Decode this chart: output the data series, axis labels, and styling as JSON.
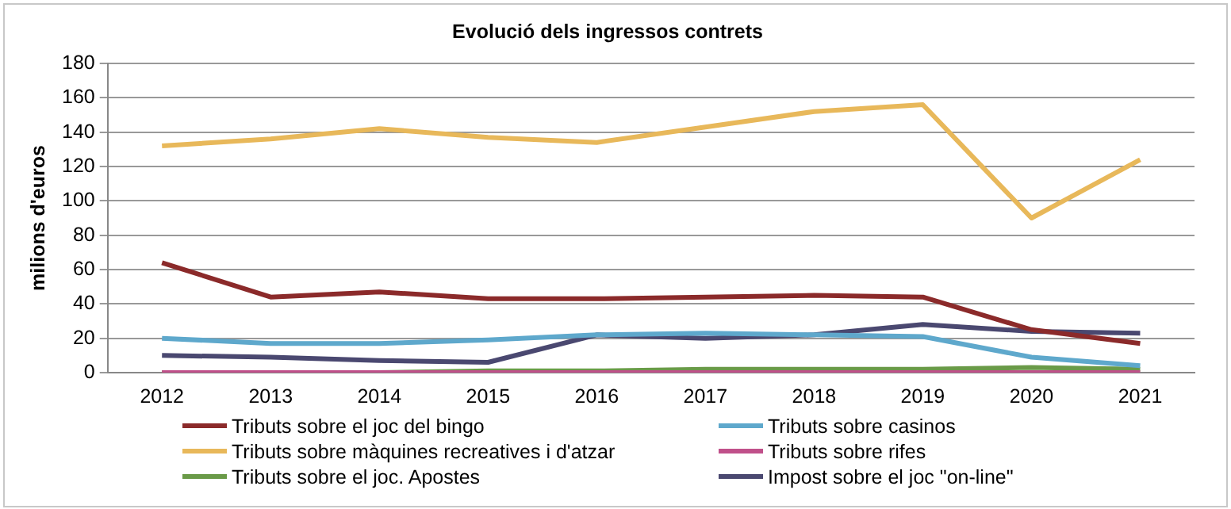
{
  "chart_data": {
    "type": "line",
    "title": "Evolució dels ingressos contrets",
    "ylabel": "milions d'euros",
    "categories": [
      "2012",
      "2013",
      "2014",
      "2015",
      "2016",
      "2017",
      "2018",
      "2019",
      "2020",
      "2021"
    ],
    "series": [
      {
        "name": "Tributs sobre el joc del bingo",
        "color": "#8b2a2a",
        "values": [
          64,
          44,
          47,
          43,
          43,
          44,
          45,
          44,
          25,
          17
        ]
      },
      {
        "name": "Tributs sobre casinos",
        "color": "#5ea8cc",
        "values": [
          20,
          17,
          17,
          19,
          22,
          23,
          22,
          21,
          9,
          4
        ]
      },
      {
        "name": "Tributs sobre màquines recreatives i d'atzar",
        "color": "#e8b85a",
        "values": [
          132,
          136,
          142,
          137,
          134,
          143,
          152,
          156,
          90,
          124
        ]
      },
      {
        "name": "Tributs sobre rifes",
        "color": "#c0508a",
        "values": [
          0,
          0,
          0,
          0,
          0,
          0,
          0,
          0,
          0,
          0
        ]
      },
      {
        "name": "Tributs sobre el joc. Apostes",
        "color": "#6a9a48",
        "values": [
          0,
          0,
          0,
          1,
          1,
          2,
          2,
          2,
          3,
          2
        ]
      },
      {
        "name": "Impost sobre el joc \"on-line\"",
        "color": "#4a4870",
        "values": [
          10,
          9,
          7,
          6,
          22,
          20,
          22,
          28,
          24,
          23
        ]
      }
    ],
    "ylim": [
      0,
      180
    ],
    "yticks": [
      0,
      20,
      40,
      60,
      80,
      100,
      120,
      140,
      160,
      180
    ],
    "grid": "y",
    "legend": "bottom",
    "marker": "none",
    "line_style": "solid"
  }
}
